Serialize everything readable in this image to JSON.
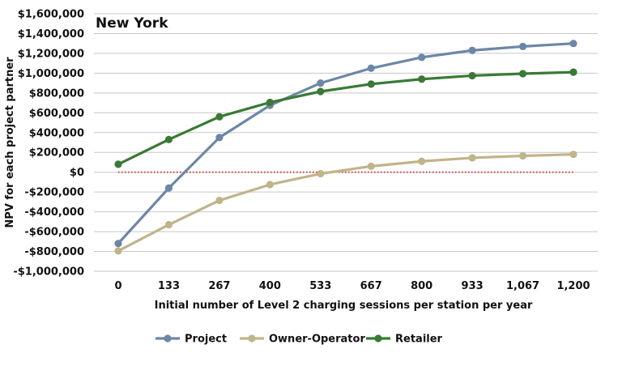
{
  "chart_data": {
    "type": "line",
    "title": "New York",
    "xlabel": "Initial number of Level 2 charging sessions per station per year",
    "ylabel": "NPV for each project partner",
    "x_categories": [
      "0",
      "133",
      "267",
      "400",
      "533",
      "667",
      "800",
      "933",
      "1,067",
      "1,200"
    ],
    "y_ticks": [
      1600000,
      1400000,
      1200000,
      1000000,
      800000,
      600000,
      400000,
      200000,
      0,
      -200000,
      -400000,
      -600000,
      -800000,
      -1000000
    ],
    "y_tick_labels": [
      "$1,600,000",
      "$1,400,000",
      "$1,200,000",
      "$1,000,000",
      "$800,000",
      "$600,000",
      "$400,000",
      "$200,000",
      "$0",
      "-$200,000",
      "-$400,000",
      "-$600,000",
      "-$800,000",
      "-$1,000,000"
    ],
    "ylim": [
      -1000000,
      1600000
    ],
    "grid": true,
    "legend_position": "bottom",
    "zero_line": {
      "value": 0,
      "color": "#e03030",
      "style": "dotted"
    },
    "series": [
      {
        "name": "Project",
        "color": "#6c87a6",
        "values": [
          -720000,
          -160000,
          350000,
          675000,
          900000,
          1050000,
          1160000,
          1230000,
          1270000,
          1300000
        ]
      },
      {
        "name": "Owner-Operator",
        "color": "#c0b48a",
        "values": [
          -795000,
          -530000,
          -285000,
          -125000,
          -15000,
          60000,
          110000,
          145000,
          165000,
          180000
        ]
      },
      {
        "name": "Retailer",
        "color": "#3a7a34",
        "values": [
          80000,
          330000,
          560000,
          705000,
          815000,
          890000,
          940000,
          975000,
          995000,
          1010000
        ]
      }
    ]
  }
}
